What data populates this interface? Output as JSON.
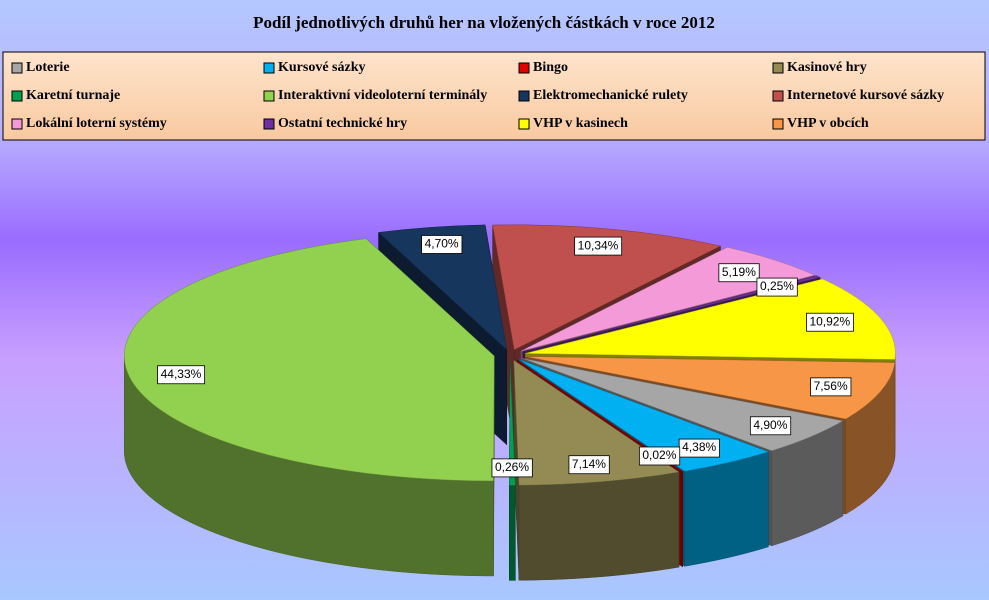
{
  "chart_data": {
    "type": "pie3d",
    "title": "Podíl jednotlivých druhů her na vložených částkách v roce 2012",
    "categories": [
      "Loterie",
      "Kursové sázky",
      "Bingo",
      "Kasinové hry",
      "Karetní turnaje",
      "Interaktivní videoloterní terminály",
      "Elektromechanické rulety",
      "Internetové kursové sázky",
      "Lokální loterní systémy",
      "Ostatní technické hry",
      "VHP v kasinech",
      "VHP v obcích"
    ],
    "values": [
      4.9,
      4.38,
      0.02,
      7.14,
      0.26,
      44.33,
      4.7,
      10.34,
      5.19,
      0.25,
      10.92,
      7.56
    ],
    "value_labels": [
      "4,90%",
      "4,38%",
      "0,02%",
      "7,14%",
      "0,26%",
      "44,33%",
      "4,70%",
      "10,34%",
      "5,19%",
      "0,25%",
      "10,92%",
      "7,56%"
    ],
    "colors": [
      "#a6a6a6",
      "#00b0f0",
      "#e00000",
      "#948a54",
      "#00a050",
      "#92d050",
      "#17365d",
      "#c0504d",
      "#f49ad9",
      "#7030a0",
      "#ffff00",
      "#f79646"
    ],
    "legend": "top"
  }
}
